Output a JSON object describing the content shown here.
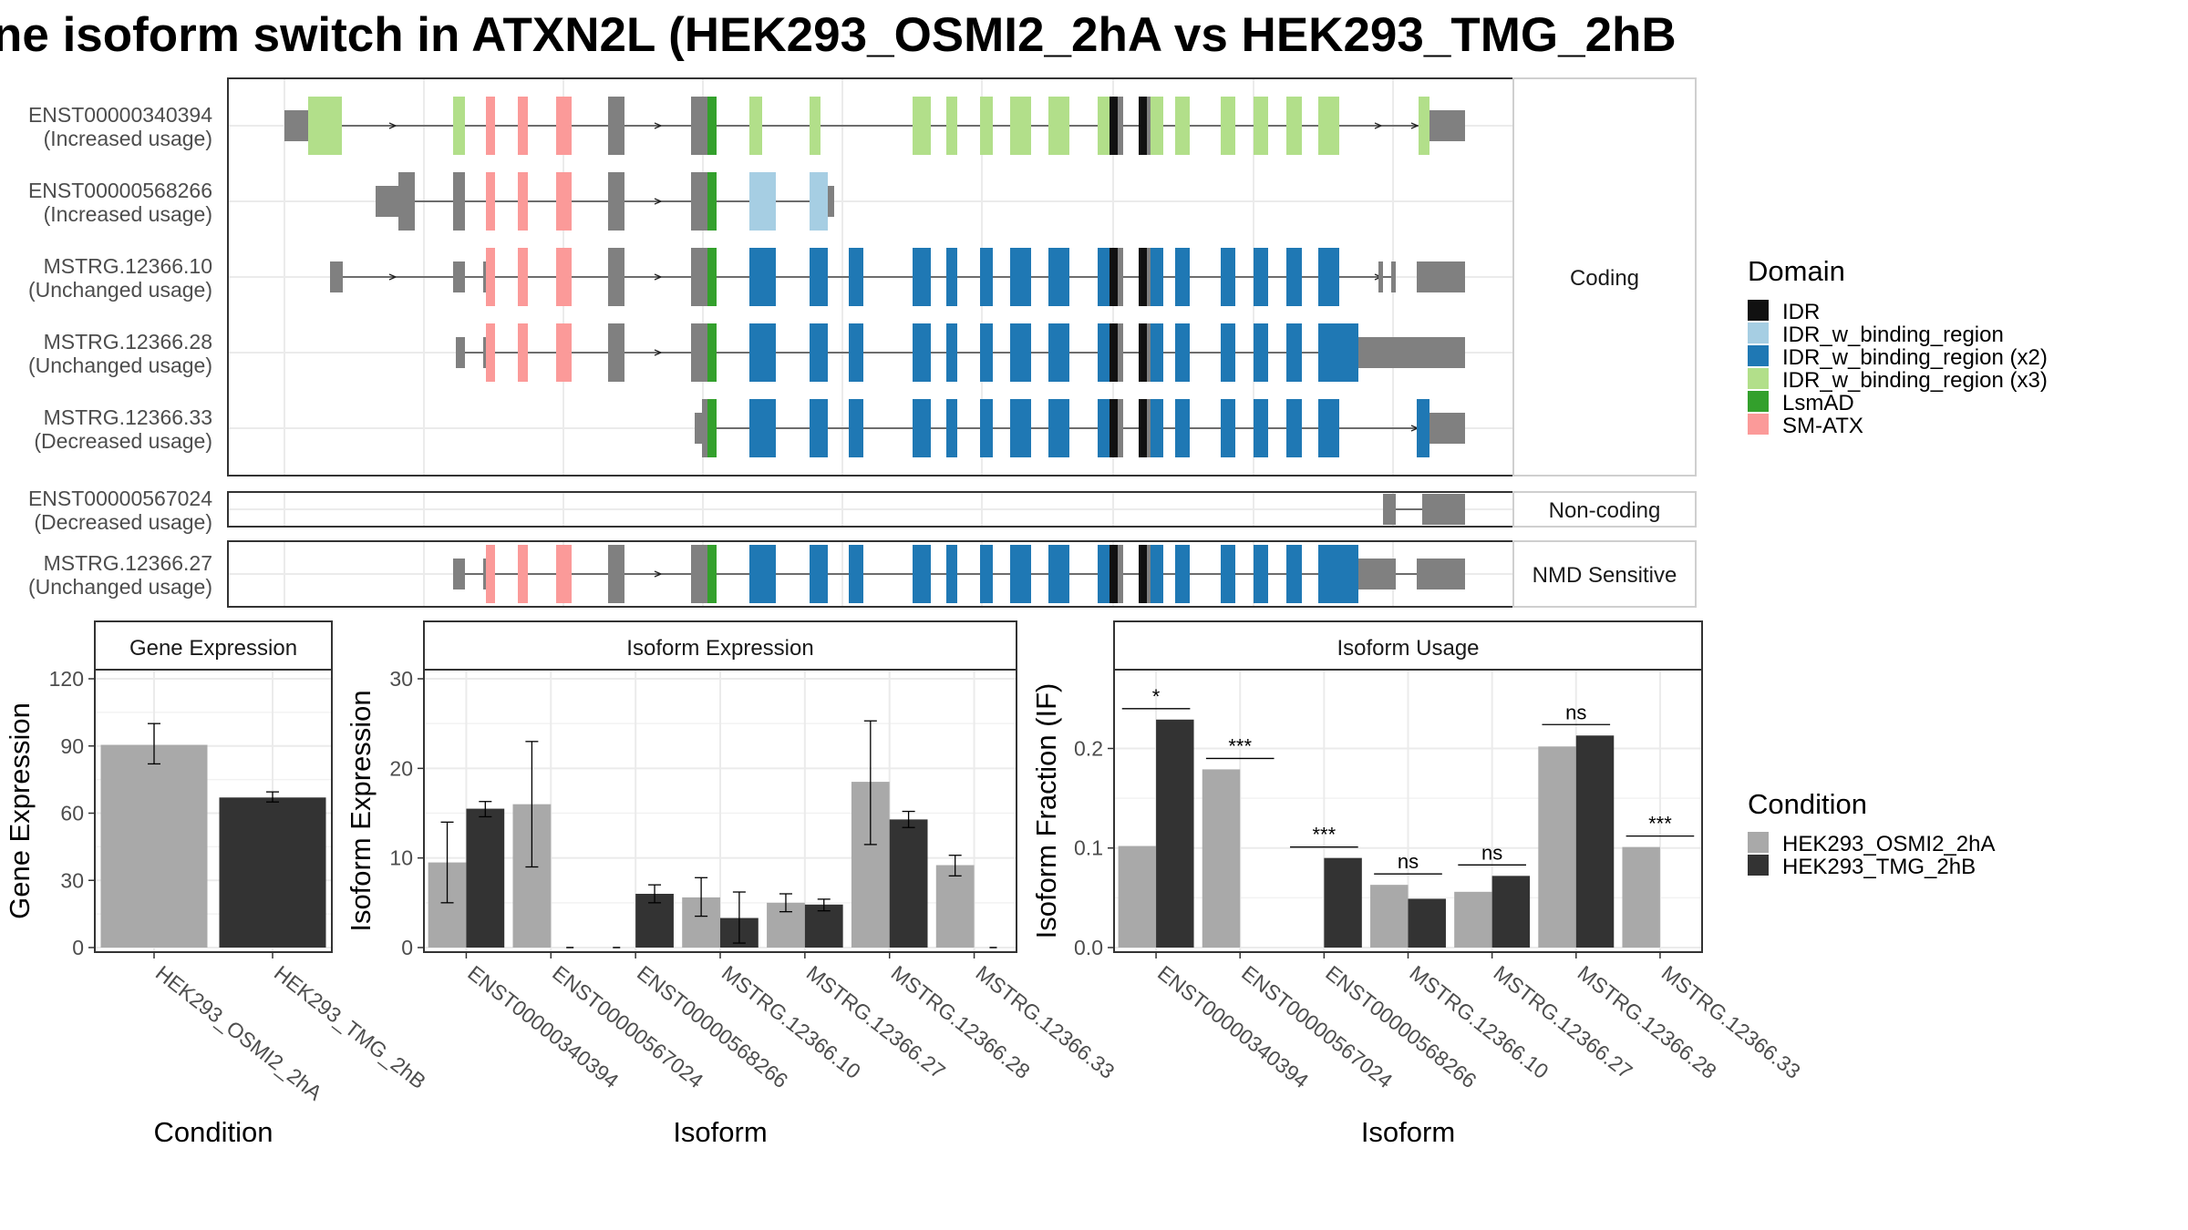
{
  "title": "ne isoform switch in ATXN2L (HEK293_OSMI2_2hA vs HEK293_TMG_2hB",
  "colors": {
    "exon": "#808080",
    "condA": "#a9a9a9",
    "condB": "#333333",
    "IDR": "#111111",
    "IDR_w_binding_region": "#a6cee3",
    "IDR_w_binding_region (x2)": "#1f78b4",
    "IDR_w_binding_region (x3)": "#b2df8a",
    "LsmAD": "#33a02c",
    "SM-ATX": "#fb9a99"
  },
  "domain_legend": {
    "title": "Domain",
    "items": [
      "IDR",
      "IDR_w_binding_region",
      "IDR_w_binding_region (x2)",
      "IDR_w_binding_region (x3)",
      "LsmAD",
      "SM-ATX"
    ]
  },
  "condition_legend": {
    "title": "Condition",
    "items": [
      "HEK293_OSMI2_2hA",
      "HEK293_TMG_2hB"
    ]
  },
  "transcript_panels": [
    {
      "facet": "Coding",
      "transcripts": [
        {
          "id": "ENST00000340394",
          "usage": "(Increased usage)"
        },
        {
          "id": "ENST00000568266",
          "usage": "(Increased usage)"
        },
        {
          "id": "MSTRG.12366.10",
          "usage": "(Unchanged usage)"
        },
        {
          "id": "MSTRG.12366.28",
          "usage": "(Unchanged usage)"
        },
        {
          "id": "MSTRG.12366.33",
          "usage": "(Decreased usage)"
        }
      ]
    },
    {
      "facet": "Non-coding",
      "transcripts": [
        {
          "id": "ENST00000567024",
          "usage": "(Decreased usage)"
        }
      ]
    },
    {
      "facet": "NMD Sensitive",
      "transcripts": [
        {
          "id": "MSTRG.12366.27",
          "usage": "(Unchanged usage)"
        }
      ]
    }
  ],
  "chart_data": [
    {
      "type": "bar",
      "title": "Gene Expression",
      "xlabel": "Condition",
      "ylabel": "Gene Expression",
      "ylim": [
        0,
        120
      ],
      "yticks": [
        0,
        30,
        60,
        90,
        120
      ],
      "categories": [
        "HEK293_OSMI2_2hA",
        "HEK293_TMG_2hB"
      ],
      "values": [
        90.5,
        67
      ],
      "errors": [
        [
          82,
          100
        ],
        [
          65,
          69.5
        ]
      ]
    },
    {
      "type": "bar",
      "title": "Isoform Expression",
      "xlabel": "Isoform",
      "ylabel": "Isoform Expression",
      "ylim": [
        0,
        30
      ],
      "yticks": [
        0,
        10,
        20,
        30
      ],
      "categories": [
        "ENST00000340394",
        "ENST00000567024",
        "ENST00000568266",
        "MSTRG.12366.10",
        "MSTRG.12366.27",
        "MSTRG.12366.28",
        "MSTRG.12366.33"
      ],
      "series": [
        {
          "name": "HEK293_OSMI2_2hA",
          "values": [
            9.5,
            16,
            0,
            5.6,
            5,
            18.5,
            9.2
          ],
          "errors": [
            [
              5,
              14
            ],
            [
              9,
              23
            ],
            null,
            [
              3.5,
              7.8
            ],
            [
              4,
              6
            ],
            [
              11.5,
              25.3
            ],
            [
              8,
              10.3
            ]
          ]
        },
        {
          "name": "HEK293_TMG_2hB",
          "values": [
            15.5,
            0,
            6,
            3.3,
            4.8,
            14.3,
            0
          ],
          "errors": [
            [
              14.6,
              16.3
            ],
            null,
            [
              5,
              7
            ],
            [
              0.5,
              6.2
            ],
            [
              4.1,
              5.4
            ],
            [
              13.4,
              15.2
            ],
            null
          ]
        }
      ]
    },
    {
      "type": "bar",
      "title": "Isoform Usage",
      "xlabel": "Isoform",
      "ylabel": "Isoform Fraction (IF)",
      "ylim": [
        0,
        0.27
      ],
      "yticks": [
        0.0,
        0.1,
        0.2
      ],
      "categories": [
        "ENST00000340394",
        "ENST00000567024",
        "ENST00000568266",
        "MSTRG.12366.10",
        "MSTRG.12366.27",
        "MSTRG.12366.28",
        "MSTRG.12366.33"
      ],
      "series": [
        {
          "name": "HEK293_OSMI2_2hA",
          "values": [
            0.102,
            0.179,
            0,
            0.063,
            0.056,
            0.202,
            0.101
          ]
        },
        {
          "name": "HEK293_TMG_2hB",
          "values": [
            0.229,
            0,
            0.09,
            0.049,
            0.072,
            0.213,
            0
          ]
        }
      ],
      "significance": [
        "*",
        "***",
        "***",
        "ns",
        "ns",
        "ns",
        "***"
      ]
    }
  ]
}
